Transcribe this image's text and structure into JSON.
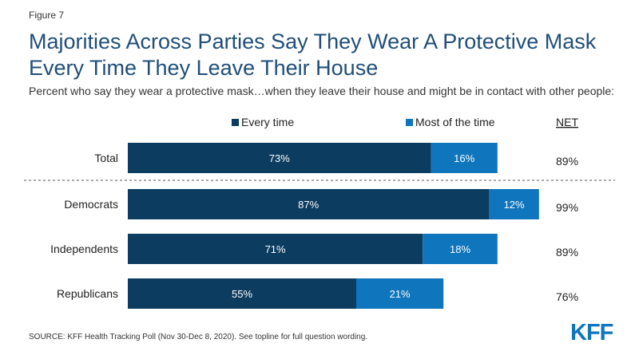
{
  "figure_label": "Figure 7",
  "title": "Majorities Across Parties Say They Wear A Protective Mask Every Time They Leave Their House",
  "subtitle": "Percent who say they wear a protective mask…when they leave their house and might be in contact with other people:",
  "source": "SOURCE: KFF Health Tracking Poll (Nov 30-Dec 8, 2020). See topline for full question wording.",
  "logo": "KFF",
  "colors": {
    "every_time": "#0c3c60",
    "most_of_time": "#0f75bc"
  },
  "chart_data": {
    "type": "bar",
    "orientation": "horizontal",
    "stacked": true,
    "categories": [
      "Total",
      "Democrats",
      "Independents",
      "Republicans"
    ],
    "series": [
      {
        "name": "Every time",
        "values": [
          73,
          87,
          71,
          55
        ],
        "labels": [
          "73%",
          "87%",
          "71%",
          "55%"
        ]
      },
      {
        "name": "Most of the time",
        "values": [
          16,
          12,
          18,
          21
        ],
        "labels": [
          "16%",
          "12%",
          "18%",
          "21%"
        ]
      }
    ],
    "net_header": "NET",
    "net_labels": [
      "89%",
      "99%",
      "89%",
      "76%"
    ],
    "xlim": [
      0,
      100
    ],
    "grid": false,
    "legend": "top"
  }
}
